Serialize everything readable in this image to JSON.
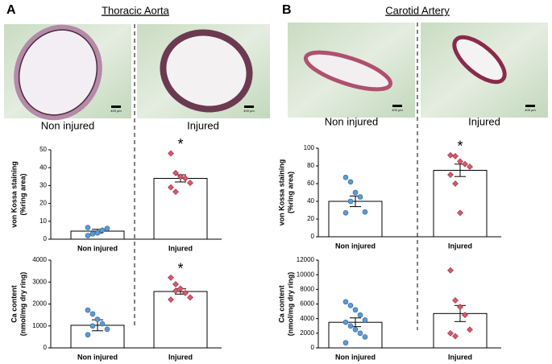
{
  "panels": [
    {
      "label": "A",
      "title": "Thoracic Aorta",
      "image_labels": [
        "Non injured",
        "Injured"
      ],
      "scale_bar": "400 µm"
    },
    {
      "label": "B",
      "title": "Carotid Artery",
      "image_labels": [
        "Non injured",
        "Injured"
      ],
      "scale_bar": "400 µm"
    }
  ],
  "chart_data": [
    {
      "type": "bar",
      "ylabel": [
        "von Kossa staining",
        "(%ring area)"
      ],
      "categories": [
        "Non injured",
        "Injured"
      ],
      "values": [
        4.5,
        34
      ],
      "errors": [
        1,
        2
      ],
      "ylim": [
        0,
        50
      ],
      "yticks": [
        0,
        10,
        20,
        30,
        40,
        50
      ],
      "points": [
        [
          2,
          3,
          3.5,
          5,
          6,
          6.5,
          3
        ],
        [
          48,
          37,
          35,
          34,
          31.5,
          29,
          26.5
        ]
      ],
      "point_colors": [
        "#5b9bd5",
        "#d9596b"
      ],
      "annotation": "*"
    },
    {
      "type": "bar",
      "ylabel": [
        "Ca content",
        "(nmol/mg dry ring)"
      ],
      "categories": [
        "Non injured",
        "Injured"
      ],
      "values": [
        1030,
        2570
      ],
      "errors": [
        250,
        120
      ],
      "ylim": [
        0,
        4000
      ],
      "yticks": [
        0,
        1000,
        2000,
        3000,
        4000
      ],
      "points": [
        [
          1720,
          1550,
          1300,
          1100,
          850,
          600,
          1000
        ],
        [
          3200,
          2900,
          2700,
          2500,
          2300,
          2200,
          2600
        ]
      ],
      "point_colors": [
        "#5b9bd5",
        "#d9596b"
      ],
      "annotation": "*"
    },
    {
      "type": "bar",
      "ylabel": [
        "von Kossa staining",
        "(%ring area)"
      ],
      "categories": [
        "Non injured",
        "Injured"
      ],
      "values": [
        40,
        75
      ],
      "errors": [
        6,
        7
      ],
      "ylim": [
        0,
        100
      ],
      "yticks": [
        0,
        20,
        40,
        60,
        80,
        100
      ],
      "points": [
        [
          67,
          62,
          50,
          45,
          28,
          27,
          40
        ],
        [
          92,
          91,
          85,
          82,
          79,
          70,
          60,
          27
        ]
      ],
      "point_colors": [
        "#5b9bd5",
        "#d9596b"
      ],
      "annotation": "*"
    },
    {
      "type": "bar",
      "ylabel": [
        "Ca content",
        "(nmol/mg dry ring)"
      ],
      "categories": [
        "Non injured",
        "Injured"
      ],
      "values": [
        3500,
        4700
      ],
      "errors": [
        600,
        1100
      ],
      "ylim": [
        0,
        12000
      ],
      "yticks": [
        0,
        2000,
        4000,
        6000,
        8000,
        10000,
        12000
      ],
      "points": [
        [
          6300,
          5800,
          5200,
          4500,
          3800,
          3500,
          3000,
          2500,
          2000,
          1500,
          700
        ],
        [
          10600,
          6500,
          5600,
          4500,
          2500,
          2000,
          1600
        ]
      ],
      "point_colors": [
        "#5b9bd5",
        "#d9596b"
      ]
    }
  ]
}
